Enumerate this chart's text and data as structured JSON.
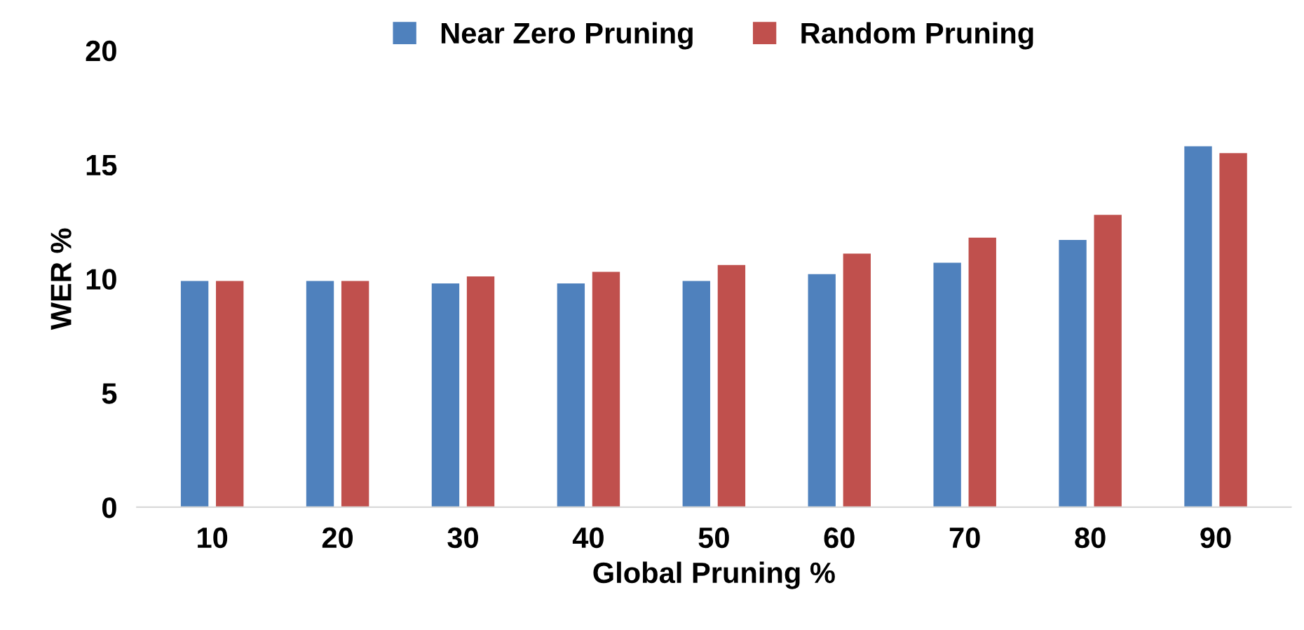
{
  "chart_data": {
    "type": "bar",
    "xlabel": "Global Pruning %",
    "ylabel": "WER %",
    "categories": [
      "10",
      "20",
      "30",
      "40",
      "50",
      "60",
      "70",
      "80",
      "90"
    ],
    "series": [
      {
        "name": "Near Zero Pruning",
        "color": "#4f81bd",
        "values": [
          9.9,
          9.9,
          9.8,
          9.8,
          9.9,
          10.2,
          10.7,
          11.7,
          15.8
        ]
      },
      {
        "name": "Random Pruning",
        "color": "#c0504d",
        "values": [
          9.9,
          9.9,
          10.1,
          10.3,
          10.6,
          11.1,
          11.8,
          12.8,
          15.5
        ]
      }
    ],
    "ylim": [
      0,
      20
    ],
    "yticks": [
      0,
      5,
      10,
      15,
      20
    ],
    "grid": false,
    "legend": "top"
  }
}
